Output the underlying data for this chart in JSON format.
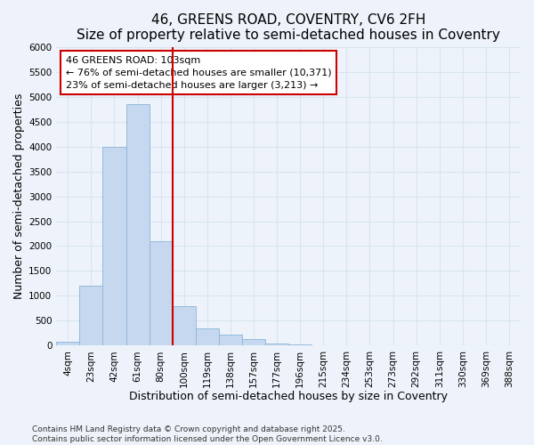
{
  "title1": "46, GREENS ROAD, COVENTRY, CV6 2FH",
  "title2": "Size of property relative to semi-detached houses in Coventry",
  "xlabel": "Distribution of semi-detached houses by size in Coventry",
  "ylabel": "Number of semi-detached properties",
  "categories": [
    "4sqm",
    "23sqm",
    "42sqm",
    "61sqm",
    "80sqm",
    "100sqm",
    "119sqm",
    "138sqm",
    "157sqm",
    "177sqm",
    "196sqm",
    "215sqm",
    "234sqm",
    "253sqm",
    "273sqm",
    "292sqm",
    "311sqm",
    "330sqm",
    "369sqm",
    "388sqm"
  ],
  "values": [
    80,
    1200,
    4000,
    4850,
    2100,
    800,
    350,
    225,
    125,
    50,
    20,
    10,
    5,
    2,
    1,
    0,
    0,
    0,
    0,
    0
  ],
  "bar_color": "#c5d8ef",
  "bar_edge_color": "#8ab4d8",
  "vline_color": "#cc0000",
  "annotation_title": "46 GREENS ROAD: 103sqm",
  "annotation_line1": "← 76% of semi-detached houses are smaller (10,371)",
  "annotation_line2": "23% of semi-detached houses are larger (3,213) →",
  "ylim_max": 6000,
  "ytick_step": 500,
  "footnote1": "Contains HM Land Registry data © Crown copyright and database right 2025.",
  "footnote2": "Contains public sector information licensed under the Open Government Licence v3.0.",
  "bg_color": "#eef3fb",
  "grid_color": "#d8e4f0",
  "title1_fontsize": 11,
  "title2_fontsize": 9.5,
  "tick_fontsize": 7.5,
  "axis_label_fontsize": 9,
  "annot_fontsize": 8,
  "footnote_fontsize": 6.5
}
